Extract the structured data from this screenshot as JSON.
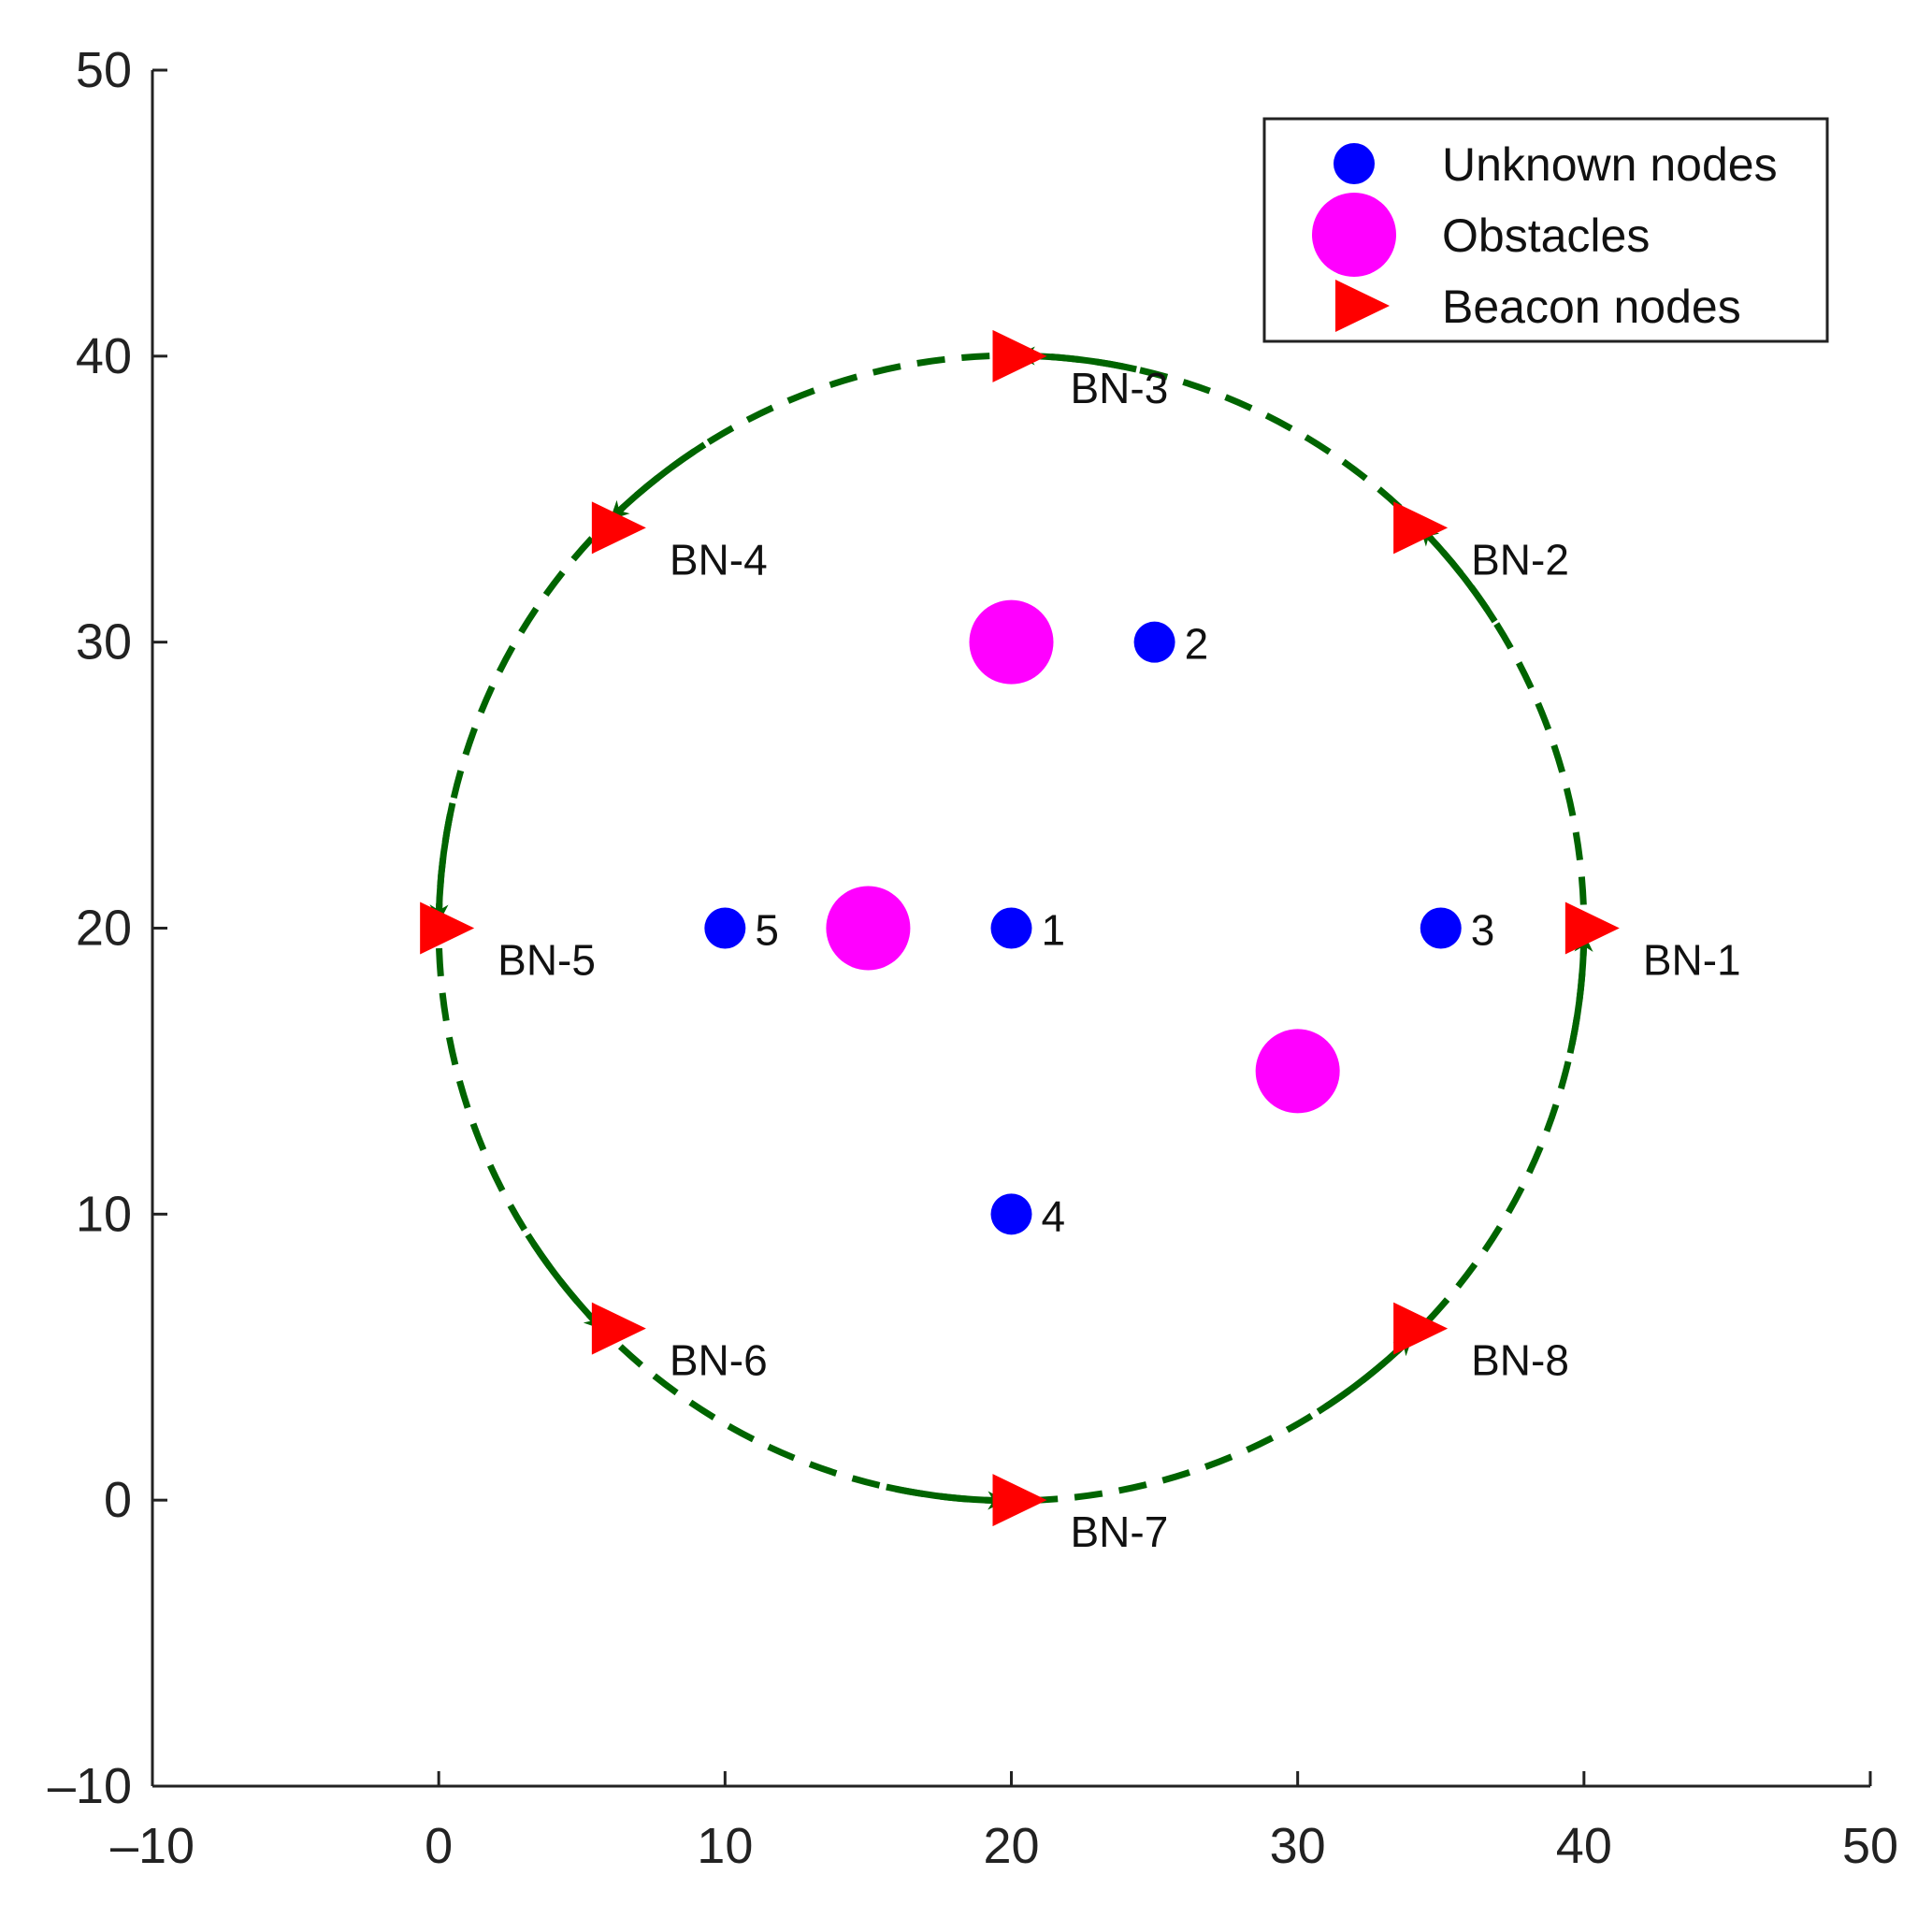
{
  "chart_data": {
    "type": "scatter",
    "xlim": [
      -10,
      50
    ],
    "ylim": [
      -10,
      50
    ],
    "x_ticks": [
      -10,
      0,
      10,
      20,
      30,
      40,
      50
    ],
    "y_ticks": [
      -10,
      0,
      10,
      20,
      30,
      40,
      50
    ],
    "grid": false,
    "legend_position": "top-right",
    "series": [
      {
        "name": "Unknown nodes",
        "marker": "circle",
        "color": "#0000ff",
        "points": [
          {
            "label": "1",
            "x": 20,
            "y": 20
          },
          {
            "label": "2",
            "x": 25,
            "y": 30
          },
          {
            "label": "3",
            "x": 35,
            "y": 20
          },
          {
            "label": "4",
            "x": 20,
            "y": 10
          },
          {
            "label": "5",
            "x": 10,
            "y": 20
          }
        ]
      },
      {
        "name": "Obstacles",
        "marker": "circle-large",
        "color": "#ff00ff",
        "points": [
          {
            "x": 20,
            "y": 30
          },
          {
            "x": 15,
            "y": 20
          },
          {
            "x": 30,
            "y": 15
          }
        ]
      },
      {
        "name": "Beacon nodes",
        "marker": "triangle-right",
        "color": "#ff0000",
        "points": [
          {
            "label": "BN-1",
            "x": 40,
            "y": 20
          },
          {
            "label": "BN-2",
            "x": 34,
            "y": 34
          },
          {
            "label": "BN-3",
            "x": 20,
            "y": 40
          },
          {
            "label": "BN-4",
            "x": 6,
            "y": 34
          },
          {
            "label": "BN-5",
            "x": 0,
            "y": 20
          },
          {
            "label": "BN-6",
            "x": 6,
            "y": 6
          },
          {
            "label": "BN-7",
            "x": 20,
            "y": 0
          },
          {
            "label": "BN-8",
            "x": 34,
            "y": 6
          }
        ]
      }
    ],
    "path": {
      "shape": "circle",
      "center": [
        20,
        20
      ],
      "radius": 20,
      "style": "dashed",
      "color": "#006400",
      "direction": "counterclockwise",
      "arrows_at_beacons": [
        "BN-1",
        "BN-2",
        "BN-3",
        "BN-4",
        "BN-5",
        "BN-6",
        "BN-7",
        "BN-8"
      ]
    }
  }
}
